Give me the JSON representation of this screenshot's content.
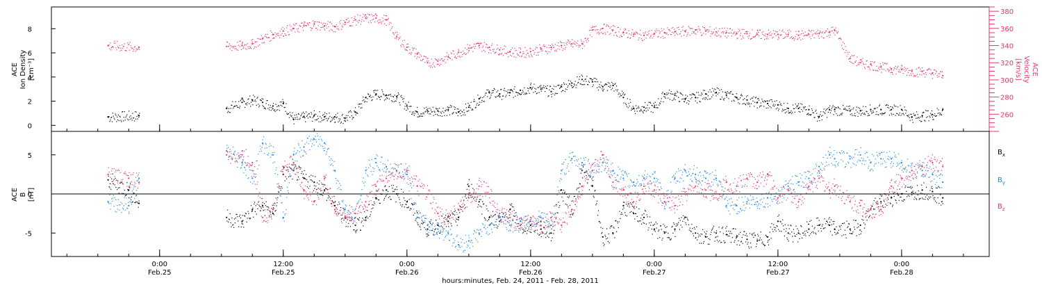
{
  "chart_data": [
    {
      "type": "scatter",
      "panel": "top",
      "ylabel_left": [
        "ACE",
        "Ion Density",
        "[cm⁻³]"
      ],
      "ylabel_right": [
        "ACE",
        "Velocity",
        "[km/s]"
      ],
      "yticks_left": [
        0,
        2,
        4,
        6,
        8
      ],
      "ylim_left": [
        -0.5,
        9.8
      ],
      "yticks_right": [
        260,
        280,
        300,
        320,
        340,
        360,
        380
      ],
      "ylim_right": [
        240,
        385
      ],
      "right_axis_color": "#e8336b",
      "series": [
        {
          "axis": "left",
          "color": "#000000",
          "x": [
            -5,
            -2,
            6.5,
            8,
            9,
            10,
            11,
            12,
            13,
            14,
            15,
            16,
            17,
            18,
            19,
            20,
            21,
            22,
            23,
            24,
            25,
            26,
            27,
            28,
            29,
            30,
            31,
            32,
            33,
            34,
            35,
            36,
            37,
            38,
            39,
            40,
            41,
            42,
            43,
            44,
            45,
            46,
            47,
            48,
            49,
            50,
            51,
            52,
            53,
            54,
            55,
            56,
            57,
            58,
            59,
            60,
            61,
            62,
            63,
            64,
            65,
            65.5,
            67,
            68,
            69,
            70,
            71,
            72,
            73,
            74,
            75,
            76
          ],
          "y": [
            0.7,
            0.8,
            1.4,
            1.9,
            2.1,
            1.9,
            1.6,
            1.8,
            0.5,
            0.7,
            0.8,
            0.7,
            0.7,
            0.6,
            1.1,
            2.3,
            2.6,
            2.5,
            2.4,
            1.6,
            1.1,
            1.2,
            1.2,
            1.3,
            1.1,
            1.5,
            2.2,
            2.7,
            2.6,
            2.7,
            2.9,
            3.1,
            3.0,
            2.8,
            3.2,
            3.5,
            3.8,
            3.6,
            3.2,
            3.3,
            2.3,
            1.4,
            1.5,
            1.5,
            2.6,
            2.5,
            2.2,
            2.3,
            2.6,
            2.7,
            2.5,
            2.3,
            2.1,
            1.9,
            1.8,
            1.7,
            1.4,
            1.4,
            1.3,
            0.7,
            1.3,
            1.3,
            1.2,
            1.2,
            1.3,
            1.3,
            1.3,
            1.3,
            0.7,
            0.8,
            0.9,
            1.3
          ]
        },
        {
          "axis": "right",
          "color": "#e8336b",
          "x": [
            -5,
            -2,
            6.5,
            8,
            9,
            10,
            11,
            12,
            13,
            14,
            15,
            16,
            17,
            18,
            19,
            20,
            21,
            22,
            23,
            24,
            25,
            26,
            27,
            28,
            29,
            30,
            31,
            32,
            33,
            34,
            35,
            36,
            37,
            38,
            39,
            40,
            41,
            42,
            43,
            44,
            45,
            46,
            47,
            48,
            49,
            50,
            51,
            52,
            53,
            54,
            55,
            56,
            57,
            58,
            59,
            60,
            61,
            62,
            63,
            64,
            65,
            65.5,
            67,
            68,
            69,
            70,
            71,
            72,
            73,
            74,
            75,
            76
          ],
          "y": [
            340,
            338,
            339,
            340,
            342,
            348,
            353,
            357,
            360,
            363,
            365,
            363,
            362,
            367,
            370,
            372,
            372,
            370,
            350,
            338,
            330,
            320,
            322,
            327,
            332,
            337,
            340,
            338,
            335,
            333,
            332,
            333,
            336,
            338,
            340,
            342,
            342,
            358,
            360,
            358,
            355,
            353,
            352,
            354,
            355,
            356,
            357,
            358,
            357,
            356,
            355,
            354,
            354,
            353,
            353,
            353,
            353,
            352,
            353,
            354,
            356,
            358,
            325,
            320,
            318,
            315,
            313,
            312,
            310,
            310,
            308,
            305
          ]
        }
      ]
    },
    {
      "type": "scatter",
      "panel": "bottom",
      "ylabel_left": [
        "ACE",
        "B",
        "[nT]"
      ],
      "yticks_left": [
        -5,
        0,
        5
      ],
      "ylim_left": [
        -8,
        8
      ],
      "zero_line": true,
      "legend_position": "right",
      "series": [
        {
          "name": "Bx",
          "color": "#000000",
          "x": [
            -5,
            -3,
            -2,
            6.5,
            8,
            9,
            10,
            11,
            12,
            13,
            14,
            15,
            16,
            17,
            18,
            19,
            20,
            21,
            22,
            23,
            24,
            25,
            26,
            27,
            28,
            29,
            30,
            31,
            32,
            33,
            34,
            35,
            36,
            37,
            38,
            39,
            40,
            41,
            42,
            43,
            44,
            45,
            46,
            47,
            48,
            49,
            50,
            51,
            52,
            53,
            54,
            55,
            56,
            57,
            58,
            59,
            60,
            61,
            62,
            63,
            64,
            65,
            65.5,
            67,
            68,
            69,
            70,
            71,
            72,
            73,
            74,
            75,
            76
          ],
          "y": [
            1.8,
            0.5,
            -1.2,
            -3.0,
            -3.5,
            -2.0,
            -1.5,
            -2.5,
            2.5,
            3.0,
            2.0,
            1.5,
            0.5,
            -1.5,
            -3.0,
            -4.0,
            -3.0,
            -0.5,
            0.5,
            0.0,
            -1.0,
            -3.0,
            -4.5,
            -4.0,
            -3.5,
            -3.0,
            1.0,
            -1.0,
            -3.0,
            -3.5,
            -2.0,
            -4.0,
            -4.0,
            -4.5,
            -5.0,
            0.5,
            -2.0,
            3.0,
            1.0,
            -5.5,
            -5.0,
            -1.5,
            -2.5,
            -3.0,
            -4.5,
            -5.0,
            -4.5,
            -3.0,
            -5.0,
            -5.5,
            -5.0,
            -5.2,
            -5.5,
            -5.8,
            -6.0,
            -5.5,
            -3.5,
            -5.0,
            -5.0,
            -4.5,
            -4.0,
            -4.0,
            -4.5,
            -4.5,
            -4.0,
            -2.0,
            -1.0,
            -0.5,
            0.0,
            0.2,
            0.5,
            0.3,
            -0.5
          ]
        },
        {
          "name": "By",
          "color": "#1e88e5",
          "x": [
            -5,
            -3,
            -2,
            6.5,
            8,
            9,
            10,
            11,
            12,
            13,
            14,
            15,
            16,
            17,
            18,
            19,
            20,
            21,
            22,
            23,
            24,
            25,
            26,
            27,
            28,
            29,
            30,
            31,
            32,
            33,
            34,
            35,
            36,
            37,
            38,
            39,
            40,
            41,
            42,
            43,
            44,
            45,
            46,
            47,
            48,
            49,
            50,
            51,
            52,
            53,
            54,
            55,
            56,
            57,
            58,
            59,
            60,
            61,
            62,
            63,
            64,
            65,
            65.5,
            67,
            68,
            69,
            70,
            71,
            72,
            73,
            74,
            75,
            76
          ],
          "y": [
            -1.0,
            -1.5,
            2.0,
            5.5,
            4.0,
            2.0,
            6.5,
            5.0,
            -3.0,
            5.0,
            6.0,
            7.0,
            6.5,
            3.0,
            -2.0,
            -3.0,
            3.0,
            4.0,
            3.5,
            3.0,
            2.5,
            -3.0,
            -4.0,
            -4.5,
            -5.0,
            -6.5,
            -6.0,
            -5.0,
            -4.0,
            -3.0,
            -4.0,
            -3.5,
            -3.5,
            -3.0,
            -4.0,
            3.0,
            4.5,
            4.0,
            3.0,
            4.0,
            3.0,
            2.0,
            1.5,
            2.0,
            2.0,
            -1.0,
            2.0,
            3.0,
            2.5,
            2.0,
            2.0,
            -1.5,
            -1.5,
            -1.0,
            -1.0,
            -0.5,
            0.0,
            1.0,
            1.5,
            2.0,
            3.5,
            5.0,
            4.5,
            4.5,
            5.0,
            4.0,
            4.5,
            4.5,
            4.0,
            3.0,
            3.0,
            2.5,
            1.5
          ]
        },
        {
          "name": "Bz",
          "color": "#e8336b",
          "x": [
            -5,
            -3,
            -2,
            6.5,
            8,
            9,
            10,
            11,
            12,
            13,
            14,
            15,
            16,
            17,
            18,
            19,
            20,
            21,
            22,
            23,
            24,
            25,
            26,
            27,
            28,
            29,
            30,
            31,
            32,
            33,
            34,
            35,
            36,
            37,
            38,
            39,
            40,
            41,
            42,
            43,
            44,
            45,
            46,
            47,
            48,
            49,
            50,
            51,
            52,
            53,
            54,
            55,
            56,
            57,
            58,
            59,
            60,
            61,
            62,
            63,
            64,
            65,
            65.5,
            67,
            68,
            69,
            70,
            71,
            72,
            73,
            74,
            75,
            76
          ],
          "y": [
            2.5,
            2.0,
            1.5,
            5.0,
            5.0,
            4.0,
            -3.0,
            -2.0,
            3.5,
            4.0,
            0.5,
            -1.0,
            2.0,
            -2.0,
            -3.0,
            -2.5,
            -1.0,
            1.0,
            2.0,
            3.0,
            3.0,
            1.0,
            0.0,
            -2.5,
            -3.0,
            -2.0,
            -0.5,
            1.0,
            0.0,
            -2.5,
            -3.0,
            -4.0,
            -3.5,
            -4.0,
            -3.0,
            -4.0,
            -2.0,
            1.0,
            3.0,
            5.0,
            1.5,
            0.5,
            -1.0,
            1.0,
            0.5,
            -1.0,
            -1.5,
            0.0,
            1.0,
            0.5,
            0.0,
            1.5,
            1.0,
            2.0,
            1.5,
            2.5,
            -0.5,
            0.5,
            -1.0,
            1.0,
            2.0,
            0.5,
            1.0,
            -1.0,
            -1.5,
            -2.0,
            -2.0,
            1.0,
            2.0,
            3.0,
            3.5,
            4.0,
            3.5
          ]
        }
      ],
      "legend": [
        {
          "label": "B",
          "sub": "x",
          "color": "#000000"
        },
        {
          "label": "B",
          "sub": "y",
          "color": "#1e88e5"
        },
        {
          "label": "B",
          "sub": "z",
          "color": "#e8336b"
        }
      ]
    }
  ],
  "x_axis": {
    "xlim": [
      -10.5,
      80.5
    ],
    "tick_values": [
      0,
      12,
      24,
      36,
      48,
      60,
      72
    ],
    "tick_labels": [
      {
        "time": "0:00",
        "date": "Feb.25"
      },
      {
        "time": "12:00",
        "date": "Feb.25"
      },
      {
        "time": "0:00",
        "date": "Feb.26"
      },
      {
        "time": "12:00",
        "date": "Feb.26"
      },
      {
        "time": "0:00",
        "date": "Feb.27"
      },
      {
        "time": "12:00",
        "date": "Feb.27"
      },
      {
        "time": "0:00",
        "date": "Feb.28"
      }
    ],
    "xlabel": "hours:minutes, Feb. 24, 2011 - Feb. 28, 2011"
  }
}
